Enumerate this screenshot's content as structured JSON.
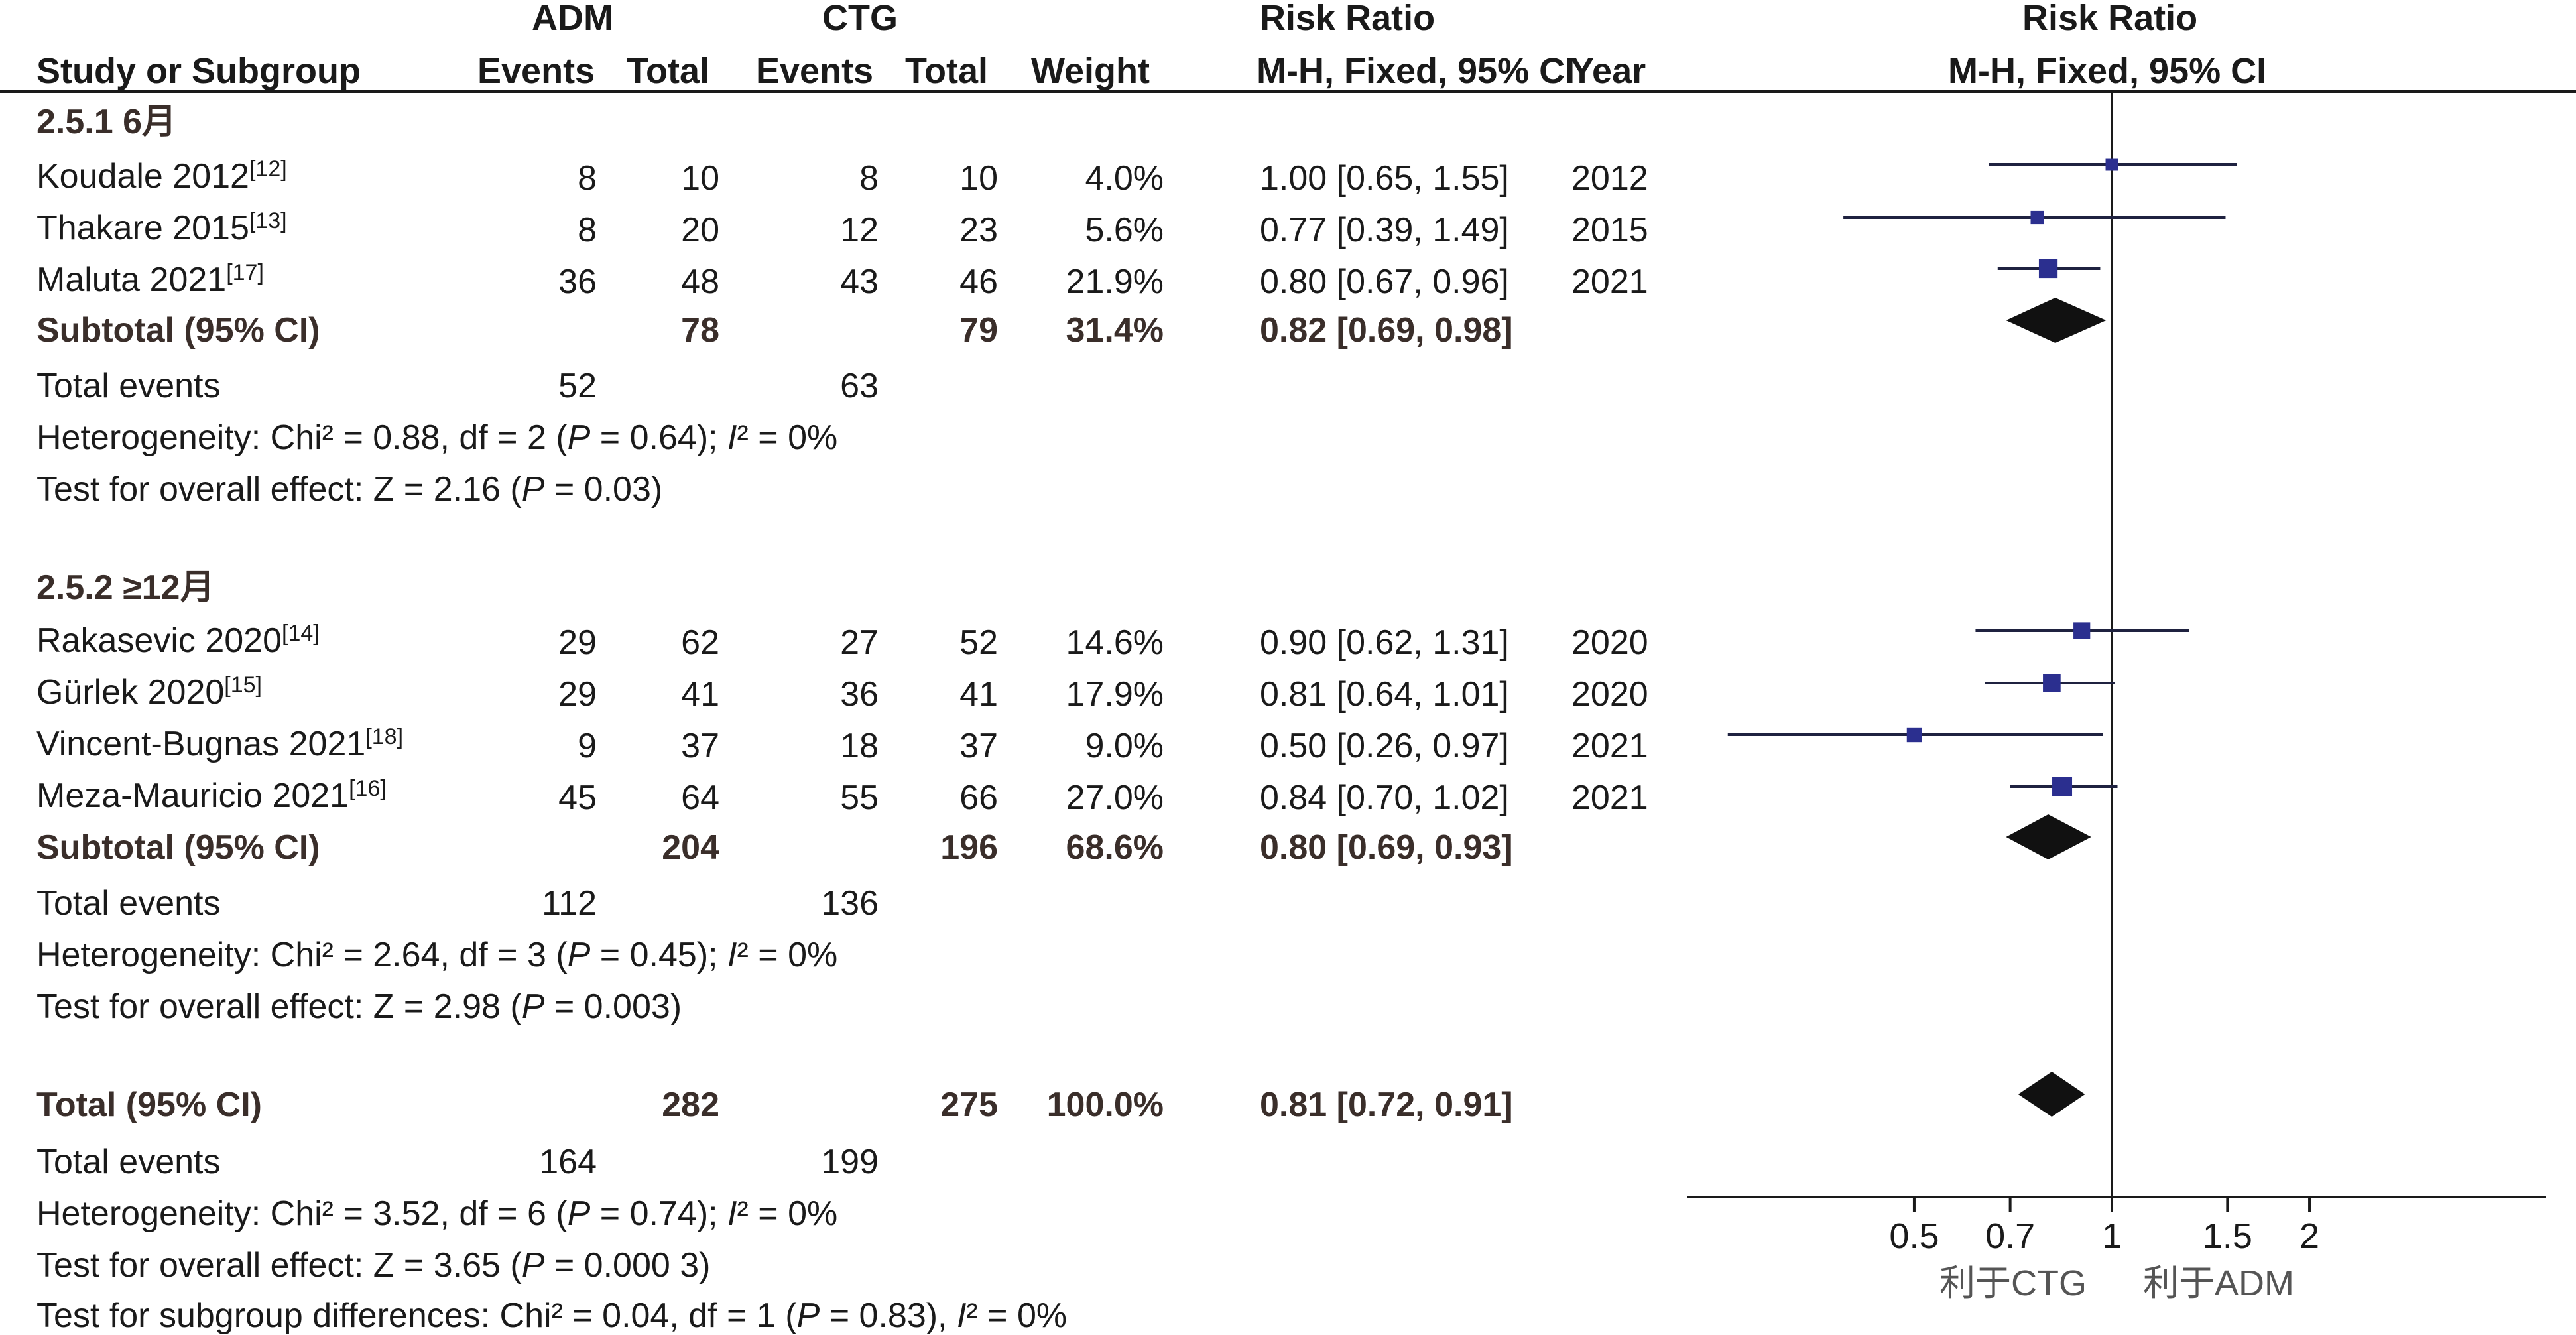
{
  "header": {
    "adm_label": "ADM",
    "ctg_label": "CTG",
    "rr_label_left": "Risk Ratio",
    "rr_label_right": "Risk Ratio",
    "col_study": "Study or Subgroup",
    "col_events1": "Events",
    "col_total1": "Total",
    "col_events2": "Events",
    "col_total2": "Total",
    "col_weight": "Weight",
    "col_mh": "M-H, Fixed, 95% CI",
    "col_year": "Year",
    "col_mh_right": "M-H, Fixed, 95% CI"
  },
  "subgroups": [
    {
      "title": "2.5.1 6月",
      "studies": [
        {
          "name": "Koudale 2012",
          "ref": "[12]",
          "e1": "8",
          "t1": "10",
          "e2": "8",
          "t2": "10",
          "weight": "4.0%",
          "ci": "1.00 [0.65, 1.55]",
          "year": "2012"
        },
        {
          "name": "Thakare 2015",
          "ref": "[13]",
          "e1": "8",
          "t1": "20",
          "e2": "12",
          "t2": "23",
          "weight": "5.6%",
          "ci": "0.77 [0.39, 1.49]",
          "year": "2015"
        },
        {
          "name": "Maluta 2021",
          "ref": "[17]",
          "e1": "36",
          "t1": "48",
          "e2": "43",
          "t2": "46",
          "weight": "21.9%",
          "ci": "0.80 [0.67, 0.96]",
          "year": "2021"
        }
      ],
      "subtotal": {
        "label": "Subtotal (95% CI)",
        "t1": "78",
        "t2": "79",
        "weight": "31.4%",
        "ci": "0.82 [0.69, 0.98]"
      },
      "total_events": {
        "label": "Total events",
        "e1": "52",
        "e2": "63"
      },
      "heterogeneity": {
        "pre": "Heterogeneity: Chi² = 0.88, df = 2 (",
        "p": "P",
        "mid": " = 0.64); ",
        "i": "I",
        "post": "² = 0%"
      },
      "overall": {
        "pre": "Test for overall effect: Z = 2.16 (",
        "p": "P",
        "post": " = 0.03)"
      }
    },
    {
      "title": "2.5.2 ≥12月",
      "studies": [
        {
          "name": "Rakasevic 2020",
          "ref": "[14]",
          "e1": "29",
          "t1": "62",
          "e2": "27",
          "t2": "52",
          "weight": "14.6%",
          "ci": "0.90 [0.62, 1.31]",
          "year": "2020"
        },
        {
          "name": "Gürlek 2020",
          "ref": "[15]",
          "e1": "29",
          "t1": "41",
          "e2": "36",
          "t2": "41",
          "weight": "17.9%",
          "ci": "0.81 [0.64, 1.01]",
          "year": "2020"
        },
        {
          "name": "Vincent-Bugnas 2021",
          "ref": "[18]",
          "e1": "9",
          "t1": "37",
          "e2": "18",
          "t2": "37",
          "weight": "9.0%",
          "ci": "0.50 [0.26, 0.97]",
          "year": "2021"
        },
        {
          "name": "Meza-Mauricio 2021",
          "ref": "[16]",
          "e1": "45",
          "t1": "64",
          "e2": "55",
          "t2": "66",
          "weight": "27.0%",
          "ci": "0.84 [0.70, 1.02]",
          "year": "2021"
        }
      ],
      "subtotal": {
        "label": "Subtotal (95% CI)",
        "t1": "204",
        "t2": "196",
        "weight": "68.6%",
        "ci": "0.80 [0.69, 0.93]"
      },
      "total_events": {
        "label": "Total events",
        "e1": "112",
        "e2": "136"
      },
      "heterogeneity": {
        "pre": "Heterogeneity: Chi² = 2.64, df = 3 (",
        "p": "P",
        "mid": " = 0.45); ",
        "i": "I",
        "post": "² = 0%"
      },
      "overall": {
        "pre": "Test for overall effect: Z = 2.98 (",
        "p": "P",
        "post": " = 0.003)"
      }
    }
  ],
  "total": {
    "label": "Total (95% CI)",
    "t1": "282",
    "t2": "275",
    "weight": "100.0%",
    "ci": "0.81 [0.72, 0.91]",
    "total_events": {
      "label": "Total events",
      "e1": "164",
      "e2": "199"
    },
    "heterogeneity": {
      "pre": "Heterogeneity: Chi² = 3.52, df = 6 (",
      "p": "P",
      "mid": " = 0.74); ",
      "i": "I",
      "post": "² = 0%"
    },
    "overall": {
      "pre": "Test for overall effect: Z = 3.65 (",
      "p": "P",
      "post": " = 0.000 3)"
    },
    "subgroup_diff": {
      "pre": "Test for subgroup differences: Chi² = 0.04, df = 1 (",
      "p": "P",
      "mid": " = 0.83), ",
      "i": "I",
      "post": "² = 0%"
    }
  },
  "colors": {
    "text": "#1a1a1a",
    "bold_text": "#3a2e2a",
    "marker": "#2b2f8f",
    "line": "#1a1a1a",
    "diamond": "#111111",
    "axis_label": "#555555"
  },
  "chart_data": {
    "type": "forest",
    "scale": "log",
    "xlim": [
      0.2,
      5
    ],
    "ticks": [
      0.5,
      0.7,
      1,
      1.5,
      2
    ],
    "tick_labels": [
      "0.5",
      "0.7",
      "1",
      "1.5",
      "2"
    ],
    "null_line": 1,
    "favours_left": "利于CTG",
    "favours_right": "利于ADM",
    "studies": [
      {
        "name": "Koudale 2012",
        "rr": 1.0,
        "lo": 0.65,
        "hi": 1.55,
        "weight": 4.0
      },
      {
        "name": "Thakare 2015",
        "rr": 0.77,
        "lo": 0.39,
        "hi": 1.49,
        "weight": 5.6
      },
      {
        "name": "Maluta 2021",
        "rr": 0.8,
        "lo": 0.67,
        "hi": 0.96,
        "weight": 21.9
      },
      {
        "name": "Rakasevic 2020",
        "rr": 0.9,
        "lo": 0.62,
        "hi": 1.31,
        "weight": 14.6
      },
      {
        "name": "Gürlek 2020",
        "rr": 0.81,
        "lo": 0.64,
        "hi": 1.01,
        "weight": 17.9
      },
      {
        "name": "Vincent-Bugnas 2021",
        "rr": 0.5,
        "lo": 0.26,
        "hi": 0.97,
        "weight": 9.0
      },
      {
        "name": "Meza-Mauricio 2021",
        "rr": 0.84,
        "lo": 0.7,
        "hi": 1.02,
        "weight": 27.0
      }
    ],
    "pooled": [
      {
        "name": "Subtotal 2.5.1",
        "rr": 0.82,
        "lo": 0.69,
        "hi": 0.98
      },
      {
        "name": "Subtotal 2.5.2",
        "rr": 0.8,
        "lo": 0.69,
        "hi": 0.93
      },
      {
        "name": "Total",
        "rr": 0.81,
        "lo": 0.72,
        "hi": 0.91
      }
    ]
  }
}
